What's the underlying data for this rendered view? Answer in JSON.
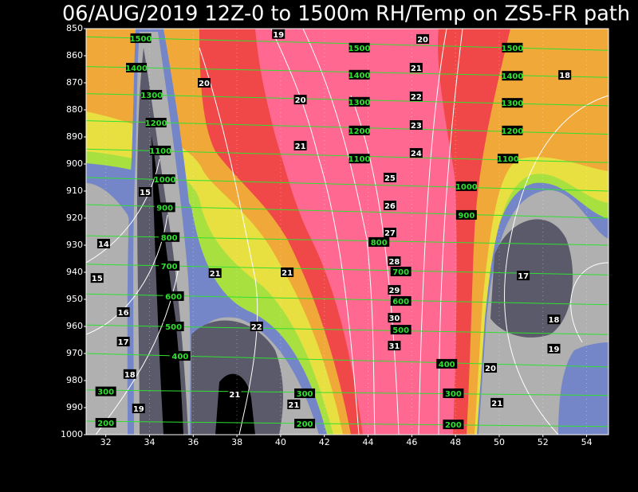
{
  "chart_data": {
    "type": "contour",
    "title": "06/AUG/2019 12Z-0 to 1500m RH/Temp on ZS5-FR path",
    "xlim": [
      31.1,
      55
    ],
    "xticks": [
      32,
      34,
      36,
      38,
      40,
      42,
      44,
      46,
      48,
      50,
      52,
      54
    ],
    "ylim": [
      1000,
      850
    ],
    "yticks": [
      850,
      860,
      870,
      880,
      890,
      900,
      910,
      920,
      930,
      940,
      950,
      960,
      970,
      980,
      990,
      1000
    ],
    "grid": true,
    "height_color": "#30e030",
    "temp_color": "#ffffff",
    "height_contours": [
      {
        "level": 1500,
        "pressure": [
          853,
          858
        ]
      },
      {
        "level": 1400,
        "pressure": [
          864,
          868
        ]
      },
      {
        "level": 1300,
        "pressure": [
          874,
          878.5
        ]
      },
      {
        "level": 1200,
        "pressure": [
          884,
          889
        ]
      },
      {
        "level": 1100,
        "pressure": [
          894.5,
          899.5
        ]
      },
      {
        "level": 1000,
        "pressure": [
          905,
          910
        ]
      },
      {
        "level": 900,
        "pressure": [
          915,
          920
        ]
      },
      {
        "level": 800,
        "pressure": [
          926.5,
          930
        ]
      },
      {
        "level": 700,
        "pressure": [
          937,
          941
        ]
      },
      {
        "level": 600,
        "pressure": [
          948,
          952
        ]
      },
      {
        "level": 500,
        "pressure": [
          959.5,
          963
        ]
      },
      {
        "level": 400,
        "pressure": [
          970,
          975
        ]
      },
      {
        "level": 300,
        "pressure": [
          983.5,
          985.5
        ]
      },
      {
        "level": 200,
        "pressure": [
          995,
          997
        ]
      }
    ],
    "height_labels": [
      {
        "level": 1500,
        "x": 33.6,
        "p": 853.5
      },
      {
        "level": 1500,
        "x": 43.6,
        "p": 857
      },
      {
        "level": 1500,
        "x": 50.6,
        "p": 857
      },
      {
        "level": 1400,
        "x": 33.4,
        "p": 864.4
      },
      {
        "level": 1400,
        "x": 43.6,
        "p": 867
      },
      {
        "level": 1400,
        "x": 50.6,
        "p": 867.4
      },
      {
        "level": 1300,
        "x": 34.1,
        "p": 874.4
      },
      {
        "level": 1300,
        "x": 43.6,
        "p": 877
      },
      {
        "level": 1300,
        "x": 50.6,
        "p": 877.4
      },
      {
        "level": 1200,
        "x": 34.3,
        "p": 884.7
      },
      {
        "level": 1200,
        "x": 43.6,
        "p": 887.6
      },
      {
        "level": 1200,
        "x": 50.6,
        "p": 887.6
      },
      {
        "level": 1100,
        "x": 34.5,
        "p": 895
      },
      {
        "level": 1100,
        "x": 43.6,
        "p": 898
      },
      {
        "level": 1100,
        "x": 50.4,
        "p": 898
      },
      {
        "level": 1000,
        "x": 34.7,
        "p": 905.6
      },
      {
        "level": 1000,
        "x": 48.5,
        "p": 908.2
      },
      {
        "level": 900,
        "x": 34.7,
        "p": 916
      },
      {
        "level": 900,
        "x": 48.5,
        "p": 918.8
      },
      {
        "level": 800,
        "x": 34.9,
        "p": 927
      },
      {
        "level": 800,
        "x": 44.5,
        "p": 928.8
      },
      {
        "level": 700,
        "x": 34.9,
        "p": 937.6
      },
      {
        "level": 700,
        "x": 45.5,
        "p": 939.7
      },
      {
        "level": 600,
        "x": 35.1,
        "p": 948.8
      },
      {
        "level": 600,
        "x": 45.5,
        "p": 950.6
      },
      {
        "level": 500,
        "x": 35.1,
        "p": 960
      },
      {
        "level": 500,
        "x": 45.5,
        "p": 961.2
      },
      {
        "level": 400,
        "x": 35.4,
        "p": 970.9
      },
      {
        "level": 400,
        "x": 47.6,
        "p": 973.8
      },
      {
        "level": 300,
        "x": 32,
        "p": 984
      },
      {
        "level": 300,
        "x": 41.1,
        "p": 984.7
      },
      {
        "level": 300,
        "x": 47.9,
        "p": 984.7
      },
      {
        "level": 200,
        "x": 32,
        "p": 995.6
      },
      {
        "level": 200,
        "x": 41.1,
        "p": 995.9
      },
      {
        "level": 200,
        "x": 47.9,
        "p": 996.2
      }
    ],
    "temp_labels": [
      {
        "value": 19,
        "x": 39.9,
        "p": 852
      },
      {
        "value": 20,
        "x": 46.5,
        "p": 853.8
      },
      {
        "value": 21,
        "x": 46.2,
        "p": 864.4
      },
      {
        "value": 22,
        "x": 46.2,
        "p": 875
      },
      {
        "value": 23,
        "x": 46.2,
        "p": 885.6
      },
      {
        "value": 24,
        "x": 46.2,
        "p": 895.9
      },
      {
        "value": 25,
        "x": 45,
        "p": 905
      },
      {
        "value": 26,
        "x": 45,
        "p": 915.3
      },
      {
        "value": 27,
        "x": 45,
        "p": 925.3
      },
      {
        "value": 28,
        "x": 45.2,
        "p": 935.9
      },
      {
        "value": 29,
        "x": 45.2,
        "p": 946.5
      },
      {
        "value": 30,
        "x": 45.2,
        "p": 956.8
      },
      {
        "value": 31,
        "x": 45.2,
        "p": 967.1
      },
      {
        "value": 20,
        "x": 36.5,
        "p": 870
      },
      {
        "value": 20,
        "x": 40.9,
        "p": 876.2
      },
      {
        "value": 21,
        "x": 40.9,
        "p": 893.2
      },
      {
        "value": 18,
        "x": 53,
        "p": 867.1
      },
      {
        "value": 15,
        "x": 33.8,
        "p": 910.3
      },
      {
        "value": 14,
        "x": 31.9,
        "p": 929.4
      },
      {
        "value": 15,
        "x": 31.6,
        "p": 942.1
      },
      {
        "value": 16,
        "x": 32.8,
        "p": 954.7
      },
      {
        "value": 17,
        "x": 32.8,
        "p": 965.6
      },
      {
        "value": 18,
        "x": 33.1,
        "p": 977.6
      },
      {
        "value": 19,
        "x": 33.5,
        "p": 990.3
      },
      {
        "value": 21,
        "x": 37,
        "p": 940.3
      },
      {
        "value": 21,
        "x": 40.3,
        "p": 940
      },
      {
        "value": 22,
        "x": 38.9,
        "p": 960
      },
      {
        "value": 21,
        "x": 37.9,
        "p": 985
      },
      {
        "value": 21,
        "x": 40.6,
        "p": 988.8
      },
      {
        "value": 17,
        "x": 51.1,
        "p": 941.2
      },
      {
        "value": 18,
        "x": 52.5,
        "p": 957.4
      },
      {
        "value": 19,
        "x": 52.5,
        "p": 968.2
      },
      {
        "value": 20,
        "x": 49.6,
        "p": 975.3
      },
      {
        "value": 21,
        "x": 49.9,
        "p": 988.2
      }
    ]
  }
}
